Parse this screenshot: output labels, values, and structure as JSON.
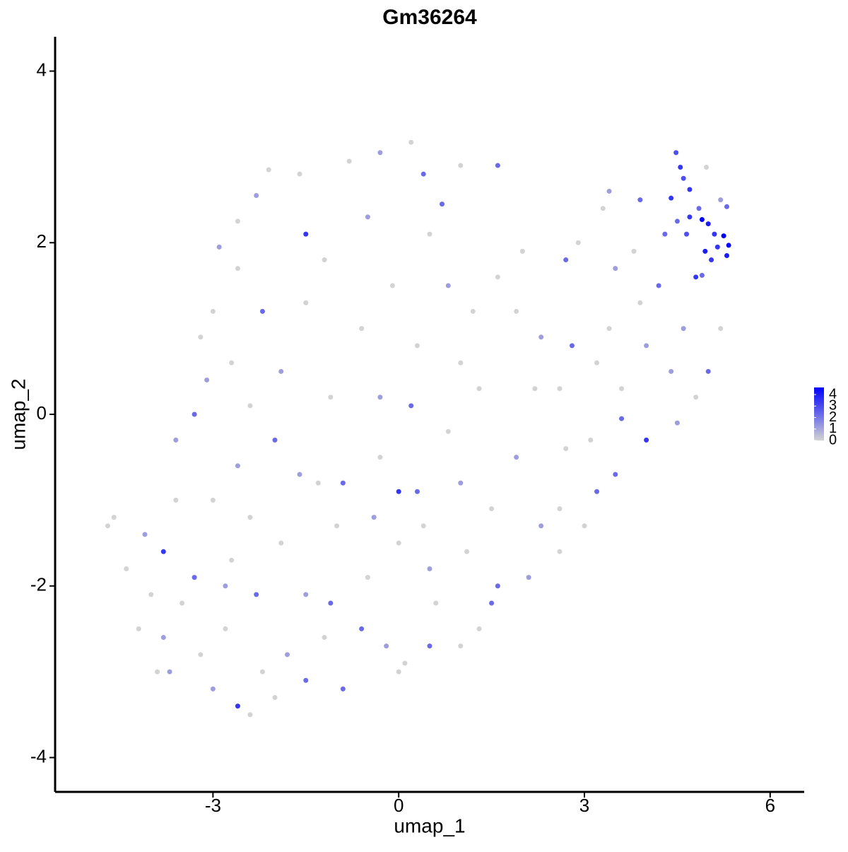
{
  "chart_data": {
    "type": "scatter",
    "title": "Gm36264",
    "x_label": "umap_1",
    "y_label": "umap_2",
    "x": [
      4.48,
      4.55,
      4.6,
      4.7,
      4.85,
      4.9,
      5.0,
      5.1,
      5.25,
      5.33,
      5.3,
      4.95,
      5.05,
      4.8,
      5.15,
      4.4,
      4.5,
      4.7,
      4.65,
      5.3,
      5.2,
      4.97,
      4.9,
      4.3,
      3.4,
      3.9,
      3.3,
      2.9,
      2.7,
      3.5,
      3.8,
      4.2,
      3.9,
      3.4,
      2.8,
      3.2,
      4.0,
      4.6,
      5.2,
      5.0,
      4.4,
      3.6,
      3.6,
      3.1,
      4.0,
      4.5,
      4.8,
      3.5,
      3.2,
      3.0,
      2.6,
      2.6,
      2.3,
      2.1,
      1.6,
      1.3,
      2.0,
      1.9,
      2.3,
      1.6,
      1.6,
      2.2,
      2.6,
      1.9,
      2.7,
      0.2,
      -0.3,
      -0.8,
      -1.6,
      -2.1,
      -2.3,
      -2.6,
      -2.9,
      -2.6,
      -3.0,
      -3.2,
      -3.1,
      -3.3,
      -2.7,
      -2.2,
      -1.5,
      -1.2,
      -0.5,
      0.4,
      0.7,
      1.0,
      0.5,
      -0.1,
      0.8,
      1.2,
      1.0,
      0.3,
      -0.6,
      -1.5,
      -1.9,
      -2.4,
      -1.1,
      -0.3,
      0.2,
      0.8,
      1.3,
      -2.0,
      -1.6,
      -0.9,
      0.0,
      0.3,
      -0.3,
      1.0,
      1.5,
      -4.7,
      -4.6,
      -4.4,
      -4.1,
      -4.0,
      -3.8,
      -3.7,
      -3.5,
      -3.3,
      -3.2,
      -3.0,
      -2.8,
      -2.6,
      -2.4,
      -2.2,
      -2.0,
      -1.8,
      -1.5,
      -1.2,
      -2.7,
      -2.4,
      -1.9,
      -1.5,
      -1.1,
      -3.6,
      -3.0,
      -2.6,
      -3.6,
      -2.3,
      -0.6,
      -0.2,
      0.1,
      0.0,
      0.5,
      1.0,
      -0.5,
      0.0,
      0.5,
      1.1,
      -1.0,
      -0.4,
      0.4,
      -1.3,
      -3.8,
      -4.2,
      -3.9,
      -2.8,
      -0.9,
      0.6,
      1.5
    ],
    "y": [
      3.05,
      2.88,
      2.75,
      2.62,
      2.4,
      2.27,
      2.22,
      2.1,
      2.08,
      1.97,
      1.85,
      1.9,
      1.8,
      1.6,
      1.95,
      2.52,
      2.25,
      2.3,
      2.1,
      2.42,
      2.5,
      2.88,
      1.62,
      2.1,
      2.6,
      2.5,
      2.4,
      2.0,
      1.8,
      1.7,
      1.9,
      1.5,
      1.3,
      1.0,
      0.8,
      0.6,
      0.8,
      1.0,
      1.0,
      0.5,
      0.5,
      0.3,
      -0.05,
      -0.3,
      -0.3,
      -0.1,
      0.2,
      -0.7,
      -0.9,
      -1.3,
      -1.1,
      -1.6,
      -1.3,
      -1.9,
      -2.0,
      -2.5,
      1.9,
      1.2,
      0.9,
      1.6,
      2.9,
      0.3,
      0.3,
      -0.5,
      -0.4,
      3.17,
      3.05,
      2.95,
      2.8,
      2.85,
      2.55,
      2.25,
      1.95,
      1.7,
      1.2,
      0.9,
      0.4,
      0.0,
      0.6,
      1.2,
      2.1,
      1.8,
      2.3,
      2.8,
      2.45,
      2.9,
      2.1,
      1.5,
      1.5,
      1.2,
      0.6,
      0.8,
      1.0,
      1.3,
      0.5,
      0.1,
      0.2,
      0.2,
      0.1,
      -0.2,
      0.3,
      -0.3,
      -0.7,
      -0.8,
      -0.9,
      -0.9,
      -0.5,
      -0.8,
      -1.1,
      -1.3,
      -1.2,
      -1.8,
      -1.4,
      -2.1,
      -2.6,
      -3.0,
      -2.2,
      -1.9,
      -2.8,
      -3.2,
      -2.5,
      -3.4,
      -3.5,
      -3.0,
      -3.3,
      -2.8,
      -3.1,
      -2.6,
      -1.7,
      -1.2,
      -1.5,
      -2.1,
      -2.2,
      -1.0,
      -1.0,
      -0.6,
      -0.3,
      -2.1,
      -2.5,
      -2.7,
      -2.9,
      -3.0,
      -2.7,
      -2.7,
      -1.9,
      -1.5,
      -1.8,
      -1.6,
      -1.3,
      -1.2,
      -1.3,
      -0.8,
      -1.6,
      -2.5,
      -3.0,
      -2.0,
      -3.2,
      -2.2,
      -2.2
    ],
    "values": [
      2.5,
      3,
      2.5,
      3,
      2,
      4,
      3.5,
      3,
      4,
      4,
      3.5,
      3.5,
      3,
      3,
      3,
      3,
      2,
      3,
      2.5,
      2,
      1,
      0,
      2,
      2,
      1,
      2,
      0,
      0,
      2,
      1,
      0,
      2,
      0,
      0,
      2,
      0,
      1,
      1,
      0,
      2,
      1,
      0,
      2,
      0,
      3,
      1,
      0,
      2,
      2,
      0,
      0,
      0,
      1,
      1,
      2,
      0,
      0,
      0,
      1,
      0,
      2,
      0,
      0,
      1,
      0,
      0,
      1,
      0,
      0,
      0,
      1,
      0,
      1,
      0,
      0,
      0,
      1,
      2,
      0,
      2,
      3,
      0,
      1,
      2,
      2,
      0,
      0,
      0,
      1,
      0,
      0,
      0,
      0,
      0,
      1,
      0,
      0,
      1,
      2,
      0,
      0,
      2,
      1,
      2,
      3,
      2,
      0,
      1,
      0,
      0,
      0,
      0,
      1,
      0,
      1,
      1,
      0,
      2,
      0,
      1,
      0,
      3,
      0,
      0,
      0,
      1,
      2,
      0,
      0,
      0,
      0,
      1,
      2,
      0,
      0,
      1,
      1,
      2,
      2,
      1,
      0,
      0,
      2,
      0,
      0,
      0,
      1,
      0,
      0,
      1,
      0,
      0,
      3,
      0,
      0,
      1,
      2,
      0,
      2
    ],
    "color_low": "#d3d3d3",
    "color_high": "#0000ff",
    "clim": [
      0,
      4
    ],
    "colorbar_ticks": [
      0,
      1,
      2,
      3,
      4
    ],
    "xlim": [
      -5.55,
      6.55
    ],
    "ylim": [
      -4.4,
      4.4
    ],
    "xticks": [
      -3,
      0,
      3,
      6
    ],
    "yticks": [
      -4,
      -2,
      0,
      2,
      4
    ]
  }
}
